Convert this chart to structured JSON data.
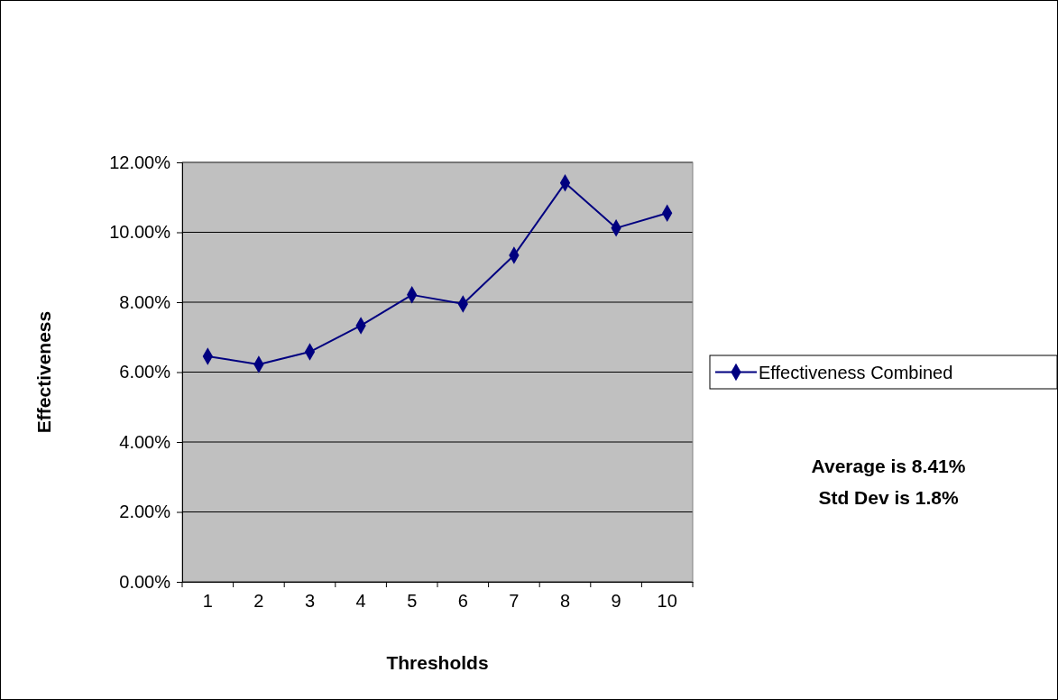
{
  "chart_data": {
    "type": "line",
    "xlabel": "Thresholds",
    "ylabel": "Effectiveness",
    "categories": [
      "1",
      "2",
      "3",
      "4",
      "5",
      "6",
      "7",
      "8",
      "9",
      "10"
    ],
    "series": [
      {
        "name": "Effectiveness Combined",
        "color": "#000080",
        "values": [
          6.45,
          6.22,
          6.58,
          7.33,
          8.21,
          7.95,
          9.34,
          11.41,
          10.12,
          10.55
        ]
      }
    ],
    "ylim": [
      0,
      12
    ],
    "yticks": [
      {
        "value": 0,
        "label": "0.00%"
      },
      {
        "value": 2,
        "label": "2.00%"
      },
      {
        "value": 4,
        "label": "4.00%"
      },
      {
        "value": 6,
        "label": "6.00%"
      },
      {
        "value": 8,
        "label": "8.00%"
      },
      {
        "value": 10,
        "label": "10.00%"
      },
      {
        "value": 12,
        "label": "12.00%"
      }
    ],
    "grid": "y",
    "legend": "right",
    "marker": "diamond",
    "line_style": "solid",
    "annotations": [
      "Average is 8.41%",
      "Std Dev is 1.8%"
    ]
  }
}
